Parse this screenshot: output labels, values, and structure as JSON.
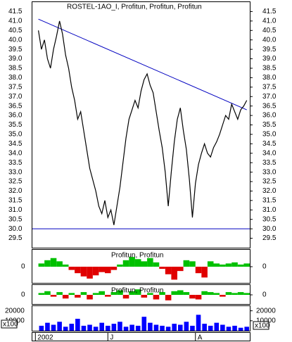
{
  "chart_data": [
    {
      "type": "line",
      "title": "ROSTEL-1AO_I, Profitun, Profitun, Profitun",
      "xlim": [
        -2,
        70
      ],
      "xticks": [
        {
          "value": -1,
          "label": "2002"
        },
        {
          "value": 23,
          "label": "J"
        },
        {
          "value": 52,
          "label": "A"
        }
      ],
      "ylim": [
        29,
        42
      ],
      "yticks": [
        29.5,
        {
          "value": 30,
          "label": "30.0"
        },
        30.5,
        {
          "value": 31,
          "label": "31.0"
        },
        31.5,
        {
          "value": 32,
          "label": "32.0"
        },
        32.5,
        {
          "value": 33,
          "label": "33.0"
        },
        33.5,
        {
          "value": 34,
          "label": "34.0"
        },
        34.5,
        {
          "value": 35,
          "label": "35.0"
        },
        35.5,
        {
          "value": 36,
          "label": "36.0"
        },
        36.5,
        {
          "value": 37,
          "label": "37.0"
        },
        37.5,
        {
          "value": 38,
          "label": "38.0"
        },
        38.5,
        {
          "value": 39,
          "label": "39.0"
        },
        39.5,
        {
          "value": 40,
          "label": "40.0"
        },
        40.5,
        {
          "value": 41,
          "label": "41.0"
        },
        41.5
      ],
      "series": [
        {
          "color": "#000000",
          "values": [
            40.5,
            39.5,
            40.0,
            39.0,
            38.5,
            39.5,
            40.2,
            41.0,
            40.3,
            39.2,
            38.5,
            37.5,
            36.8,
            35.8,
            36.2,
            35.2,
            34.2,
            33.2,
            32.6,
            32.0,
            31.2,
            30.8,
            31.5,
            30.6,
            31.0,
            30.2,
            31.2,
            32.2,
            33.5,
            34.8,
            35.8,
            36.3,
            36.8,
            36.4,
            37.3,
            37.9,
            38.2,
            37.6,
            37.2,
            36.2,
            35.2,
            34.3,
            33.0,
            31.2,
            33.0,
            34.6,
            35.8,
            36.4,
            35.2,
            34.2,
            32.6,
            30.6,
            32.4,
            33.4,
            34.0,
            34.5,
            34.0,
            33.8,
            34.3,
            34.6,
            35.0,
            35.5,
            36.0,
            35.8,
            36.6,
            36.2,
            35.8,
            36.3,
            36.5,
            36.8
          ]
        }
      ],
      "trendline": {
        "x": [
          0,
          69
        ],
        "y": [
          41.1,
          36.3
        ],
        "color": "#0000c0"
      },
      "hline": {
        "value": 30.0,
        "color": "#0000c0"
      }
    },
    {
      "type": "histogram",
      "title": "Profitun, Profitun",
      "ylim": [
        -1.5,
        1.5
      ],
      "yticks": [
        0
      ],
      "colors": {
        "positive": "#00c000",
        "negative": "#e00000"
      },
      "values": [
        0.3,
        0.6,
        0.8,
        0.5,
        0.2,
        -0.3,
        -0.6,
        -0.9,
        -1.1,
        -0.8,
        -0.5,
        -0.6,
        -0.3,
        0.2,
        0.6,
        0.9,
        0.7,
        0.5,
        0.8,
        0.4,
        -0.2,
        -0.7,
        -1.2,
        -0.4,
        0.6,
        0.5,
        -0.6,
        -1.0,
        0.5,
        0.3,
        0.2,
        0.3,
        0.4,
        0.2,
        0.3
      ]
    },
    {
      "type": "histogram",
      "title": "Profitun, Profitun",
      "ylim": [
        -1,
        1
      ],
      "yticks": [
        0
      ],
      "colors": {
        "positive": "#00c000",
        "negative": "#e00000"
      },
      "values": [
        0.2,
        0.4,
        -0.2,
        0.3,
        -0.4,
        0.2,
        -0.3,
        0.3,
        -0.5,
        0.2,
        0.4,
        -0.2,
        0.3,
        0.5,
        -0.4,
        0.4,
        0.6,
        -0.3,
        0.2,
        -0.5,
        0.3,
        -0.6,
        0.4,
        0.5,
        0.3,
        -0.4,
        -0.5,
        0.4,
        0.3,
        0.2,
        -0.2,
        0.3,
        0.2,
        0.3,
        0.2
      ]
    },
    {
      "type": "bar",
      "unit_label": "x100",
      "ylim": [
        0,
        24000
      ],
      "yticks": [
        20000,
        10000
      ],
      "color": "#0000ff",
      "values": [
        5000,
        8000,
        6000,
        9000,
        4000,
        7000,
        12000,
        5000,
        6000,
        4000,
        8000,
        5000,
        7000,
        9000,
        4000,
        6000,
        5000,
        14000,
        8000,
        6000,
        5000,
        4000,
        7000,
        6000,
        9000,
        5000,
        16000,
        7000,
        5000,
        8000,
        6000,
        4000,
        5000,
        3000,
        4000
      ]
    }
  ]
}
